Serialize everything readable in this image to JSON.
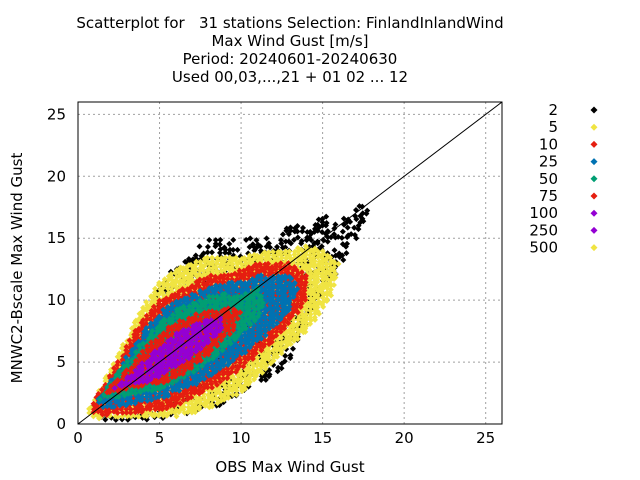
{
  "title_lines": [
    "Scatterplot for   31 stations Selection: FinlandInlandWind",
    "Max Wind Gust [m/s]",
    "Period: 20240601-20240630",
    "Used 00,03,...,21 + 01 02 ... 12"
  ],
  "chart_data": {
    "type": "scatter",
    "title": "Scatterplot for   31 stations Selection: FinlandInlandWind",
    "subtitle": [
      "Max Wind Gust [m/s]",
      "Period: 20240601-20240630",
      "Used 00,03,...,21 + 01 02 ... 12"
    ],
    "xlabel": "OBS Max Wind Gust",
    "ylabel": "MNWC2-Bscale Max Wind Gust",
    "xlim": [
      0,
      26
    ],
    "ylim": [
      0,
      26
    ],
    "xticks": [
      0,
      5,
      10,
      15,
      20,
      25
    ],
    "yticks": [
      0,
      5,
      10,
      15,
      20,
      25
    ],
    "grid": true,
    "diagonal_line": true,
    "legend_position": "right",
    "series": [
      {
        "name": "2",
        "color": "#000000"
      },
      {
        "name": "5",
        "color": "#f0e442"
      },
      {
        "name": "10",
        "color": "#e51e10"
      },
      {
        "name": "25",
        "color": "#0072b2"
      },
      {
        "name": "50",
        "color": "#009e73"
      },
      {
        "name": "75",
        "color": "#e51e10"
      },
      {
        "name": "100",
        "color": "#9400d3"
      },
      {
        "name": "250",
        "color": "#9400d3"
      },
      {
        "name": "500",
        "color": "#f0e442"
      }
    ],
    "density_bands": [
      {
        "level": "2",
        "color": "#000000",
        "points": [
          [
            0.5,
            0.5
          ],
          [
            1,
            1.5
          ],
          [
            2,
            3
          ],
          [
            3,
            5
          ],
          [
            4,
            8
          ],
          [
            5,
            11
          ],
          [
            6,
            13
          ],
          [
            7,
            14
          ],
          [
            8,
            15
          ],
          [
            9,
            15
          ],
          [
            10,
            15
          ],
          [
            12,
            15
          ],
          [
            13,
            16
          ],
          [
            14,
            16
          ],
          [
            15,
            17
          ],
          [
            16,
            16
          ],
          [
            17,
            18
          ],
          [
            18,
            17
          ],
          [
            14,
            8
          ],
          [
            13,
            5
          ],
          [
            11,
            3
          ],
          [
            9,
            1.5
          ],
          [
            7,
            0.8
          ],
          [
            5,
            0.4
          ],
          [
            3,
            0.3
          ],
          [
            1.5,
            0.3
          ]
        ]
      },
      {
        "level": "5",
        "color": "#f0e442",
        "points": [
          [
            0.5,
            0.8
          ],
          [
            1,
            2
          ],
          [
            2,
            4.5
          ],
          [
            3,
            7
          ],
          [
            4,
            9.5
          ],
          [
            5,
            11.5
          ],
          [
            6,
            12.5
          ],
          [
            7,
            13
          ],
          [
            8,
            13.5
          ],
          [
            9,
            13.5
          ],
          [
            10,
            13.5
          ],
          [
            12,
            14
          ],
          [
            13,
            14
          ],
          [
            14,
            14.5
          ],
          [
            15,
            14
          ],
          [
            16,
            13
          ],
          [
            15.5,
            10
          ],
          [
            14,
            7.5
          ],
          [
            12,
            5
          ],
          [
            10,
            2.5
          ],
          [
            8,
            1.2
          ],
          [
            6,
            0.6
          ],
          [
            4,
            0.5
          ],
          [
            2,
            0.5
          ],
          [
            1,
            0.4
          ]
        ]
      },
      {
        "level": "10",
        "color": "#e51e10",
        "points": [
          [
            0.7,
            1
          ],
          [
            1.2,
            2.5
          ],
          [
            2,
            4
          ],
          [
            3,
            6.5
          ],
          [
            4,
            8.5
          ],
          [
            5,
            10
          ],
          [
            6,
            10.5
          ],
          [
            7,
            11.5
          ],
          [
            8,
            12
          ],
          [
            9,
            12
          ],
          [
            10,
            12.5
          ],
          [
            11,
            13
          ],
          [
            12,
            13
          ],
          [
            13,
            13
          ],
          [
            14,
            12
          ],
          [
            14,
            10
          ],
          [
            13,
            8
          ],
          [
            11,
            5.5
          ],
          [
            9,
            3.5
          ],
          [
            7,
            2
          ],
          [
            5,
            1
          ],
          [
            3,
            0.8
          ],
          [
            1.5,
            0.7
          ]
        ]
      },
      {
        "level": "25",
        "color": "#0072b2",
        "points": [
          [
            1,
            1.5
          ],
          [
            2,
            3.5
          ],
          [
            3,
            5.5
          ],
          [
            4,
            7.5
          ],
          [
            5,
            9
          ],
          [
            6,
            10
          ],
          [
            7,
            10.5
          ],
          [
            8,
            11
          ],
          [
            9,
            11.5
          ],
          [
            10,
            11.5
          ],
          [
            11,
            12
          ],
          [
            12,
            12
          ],
          [
            13,
            12
          ],
          [
            13.5,
            11
          ],
          [
            13,
            9
          ],
          [
            11,
            6.5
          ],
          [
            9,
            4.5
          ],
          [
            7,
            3
          ],
          [
            5,
            2
          ],
          [
            3,
            1.5
          ],
          [
            2,
            1.2
          ]
        ]
      },
      {
        "level": "50",
        "color": "#009e73",
        "points": [
          [
            1.3,
            2
          ],
          [
            2,
            3.5
          ],
          [
            3,
            5
          ],
          [
            4,
            6.8
          ],
          [
            5,
            8.3
          ],
          [
            6,
            9.2
          ],
          [
            7,
            9.8
          ],
          [
            8,
            10.3
          ],
          [
            9,
            10.5
          ],
          [
            10,
            10.5
          ],
          [
            11,
            11
          ],
          [
            11.5,
            10
          ],
          [
            11,
            8.5
          ],
          [
            9,
            6
          ],
          [
            7,
            4
          ],
          [
            5,
            2.8
          ],
          [
            3,
            2.2
          ],
          [
            2,
            2
          ]
        ]
      },
      {
        "level": "75",
        "color": "#e51e10",
        "points": [
          [
            1.5,
            2.3
          ],
          [
            2.5,
            3.8
          ],
          [
            3.5,
            5.2
          ],
          [
            4.5,
            6.8
          ],
          [
            5.5,
            7.8
          ],
          [
            6.5,
            8.5
          ],
          [
            7.5,
            9
          ],
          [
            8.5,
            9.3
          ],
          [
            9.5,
            9.5
          ],
          [
            10,
            9
          ],
          [
            9.5,
            7.5
          ],
          [
            8,
            5.5
          ],
          [
            6.5,
            4
          ],
          [
            5,
            3.2
          ],
          [
            3.5,
            2.8
          ],
          [
            2.5,
            2.6
          ]
        ]
      },
      {
        "level": "100",
        "color": "#9400d3",
        "points": [
          [
            2,
            2.6
          ],
          [
            3,
            3.8
          ],
          [
            4,
            5
          ],
          [
            5,
            6.3
          ],
          [
            6,
            7.3
          ],
          [
            7,
            8
          ],
          [
            8,
            8.5
          ],
          [
            9,
            8.7
          ],
          [
            8.8,
            7.6
          ],
          [
            7.5,
            6
          ],
          [
            6,
            4.5
          ],
          [
            4.5,
            3.5
          ],
          [
            3,
            3
          ],
          [
            2.2,
            2.8
          ]
        ]
      },
      {
        "level": "500",
        "color": "#f0e442",
        "points": [
          [
            3,
            3.2
          ],
          [
            3.5,
            3.8
          ],
          [
            4,
            4.2
          ]
        ]
      }
    ]
  }
}
